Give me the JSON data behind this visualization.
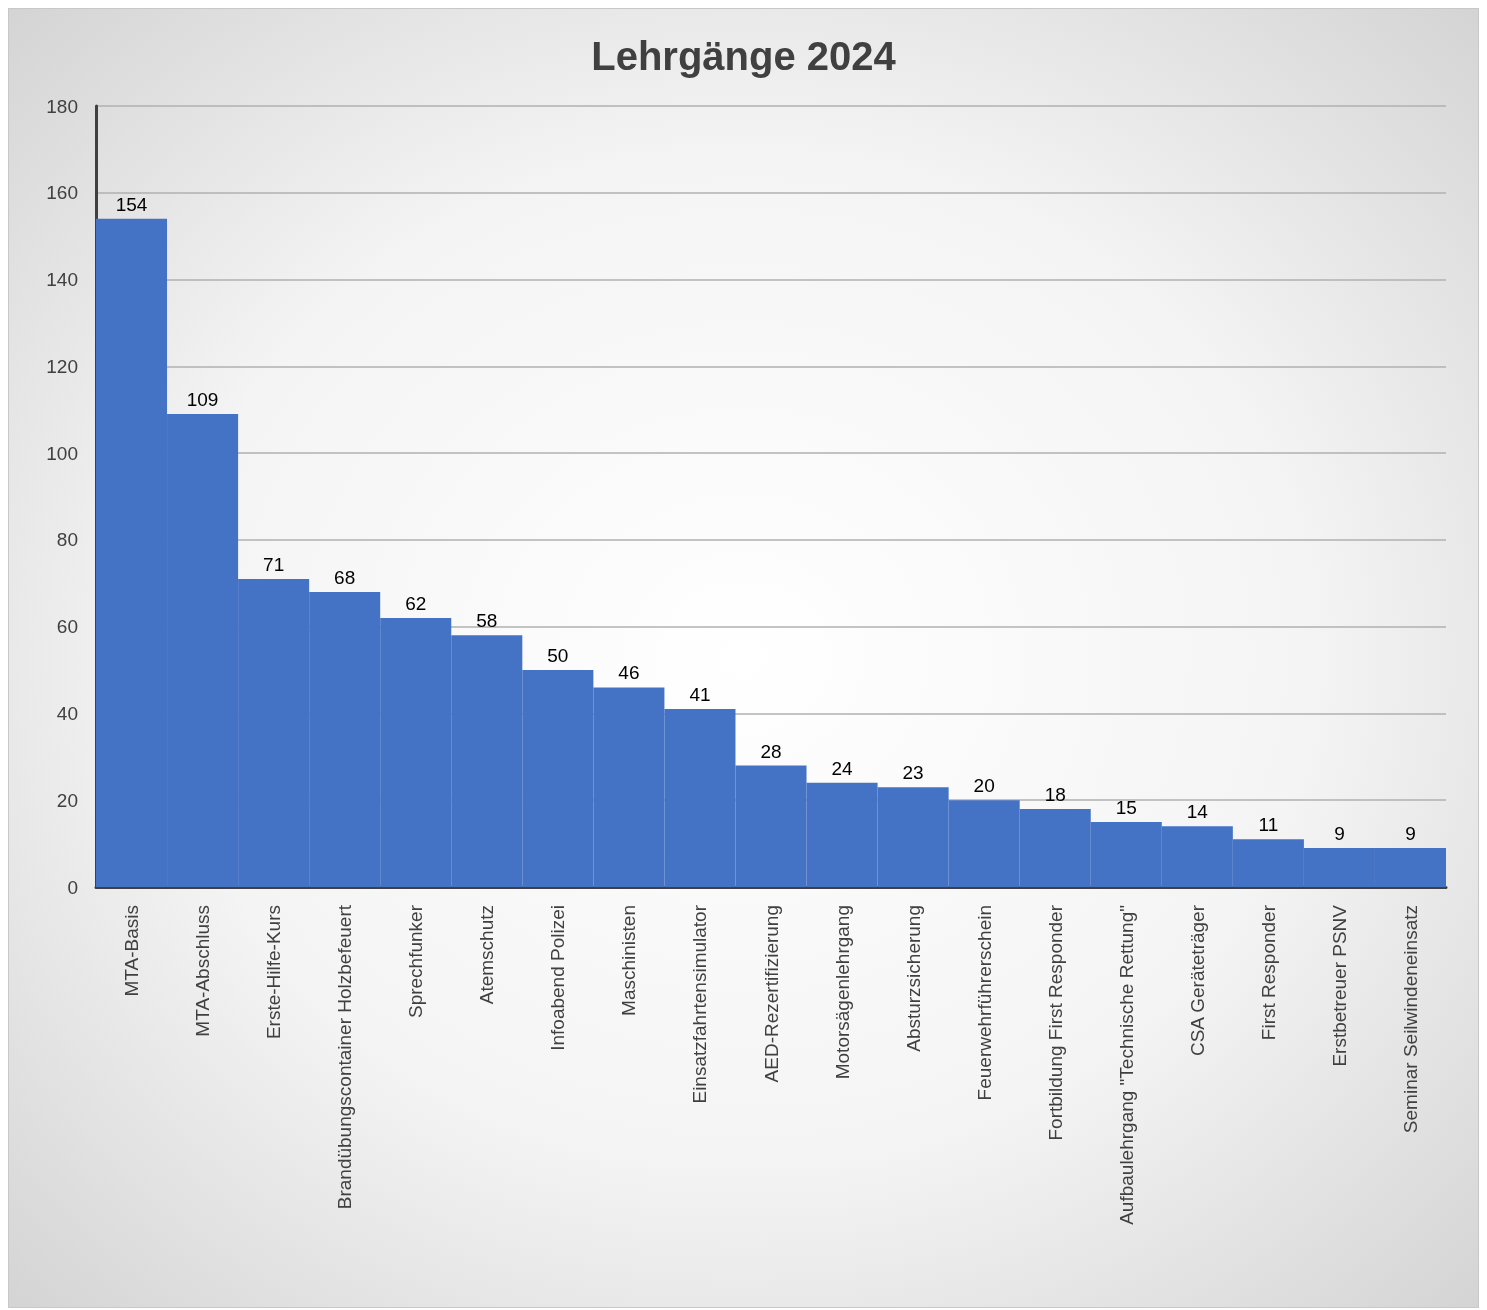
{
  "chart_data": {
    "type": "bar",
    "title": "Lehrgänge 2024",
    "categories": [
      "MTA-Basis",
      "MTA-Abschluss",
      "Erste-Hilfe-Kurs",
      "Brandübungscontainer Holzbefeuert",
      "Sprechfunker",
      "Atemschutz",
      "Infoabend Polizei",
      "Maschinisten",
      "Einsatzfahrtensimulator",
      "AED-Rezertifizierung",
      "Motorsägenlehrgang",
      "Absturzsicherung",
      "Feuerwehrführerschein",
      "Fortbildung First Responder",
      "Aufbaulehrgang \"Technische Rettung\"",
      "CSA Geräteträger",
      "First Responder",
      "Erstbetreuer PSNV",
      "Seminar Seilwindeneinsatz"
    ],
    "values": [
      154,
      109,
      71,
      68,
      62,
      58,
      50,
      46,
      41,
      28,
      24,
      23,
      20,
      18,
      15,
      14,
      11,
      9,
      9
    ],
    "color": "#4472c4",
    "ylim": [
      0,
      180
    ],
    "yticks": [
      0,
      20,
      40,
      60,
      80,
      100,
      120,
      140,
      160,
      180
    ],
    "grid": "y",
    "data_labels": true
  }
}
